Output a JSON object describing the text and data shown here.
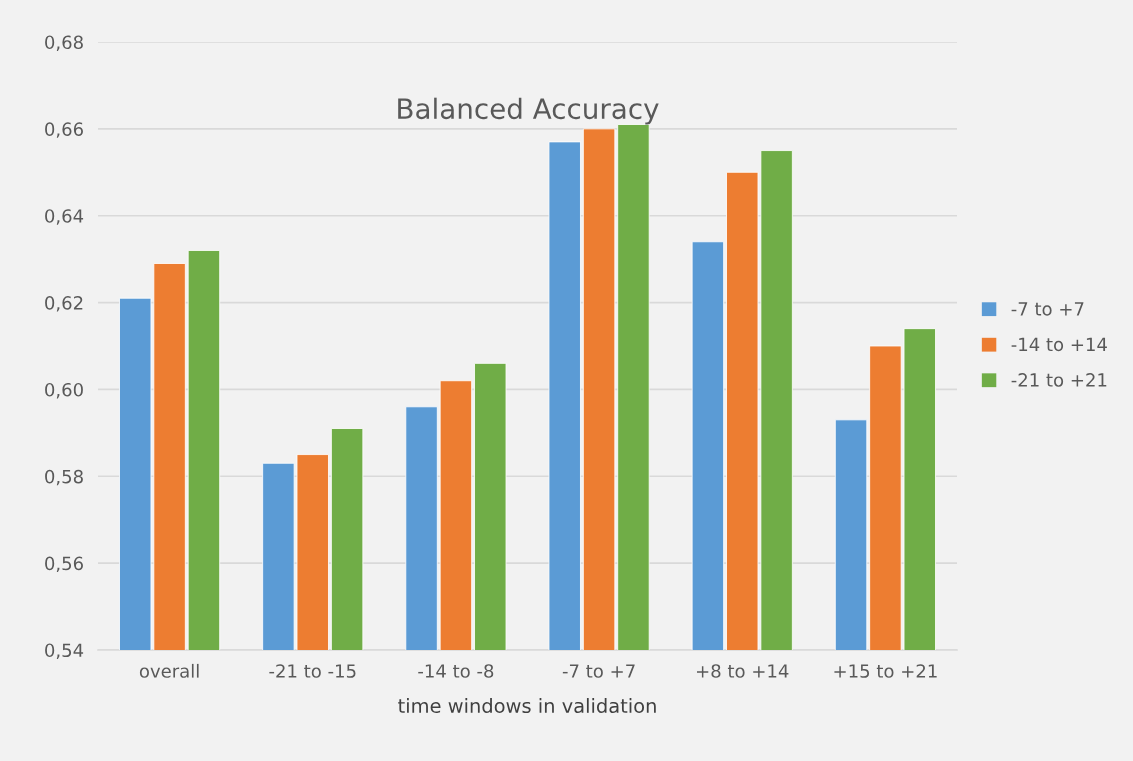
{
  "chart_data": {
    "type": "bar",
    "title": "Balanced Accuracy",
    "xlabel": "time windows in validation",
    "categories": [
      "overall",
      "-21 to -15",
      "-14 to -8",
      "-7 to +7",
      "+8 to +14",
      "+15 to +21"
    ],
    "series": [
      {
        "name": "-7 to +7",
        "color": "#5b9bd5",
        "values": [
          0.621,
          0.583,
          0.596,
          0.657,
          0.634,
          0.593
        ]
      },
      {
        "name": "-14 to +14",
        "color": "#ed7d31",
        "values": [
          0.629,
          0.585,
          0.602,
          0.66,
          0.65,
          0.61
        ]
      },
      {
        "name": "-21 to +21",
        "color": "#70ad47",
        "values": [
          0.632,
          0.591,
          0.606,
          0.661,
          0.655,
          0.614
        ]
      }
    ],
    "ylim": [
      0.54,
      0.68
    ],
    "yticks": [
      {
        "value": 0.54,
        "label": "0,54"
      },
      {
        "value": 0.56,
        "label": "0,56"
      },
      {
        "value": 0.58,
        "label": "0,58"
      },
      {
        "value": 0.6,
        "label": "0,60"
      },
      {
        "value": 0.62,
        "label": "0,62"
      },
      {
        "value": 0.64,
        "label": "0,64"
      },
      {
        "value": 0.66,
        "label": "0,66"
      },
      {
        "value": 0.68,
        "label": "0,68"
      }
    ],
    "grid": "y",
    "legend": "right"
  }
}
